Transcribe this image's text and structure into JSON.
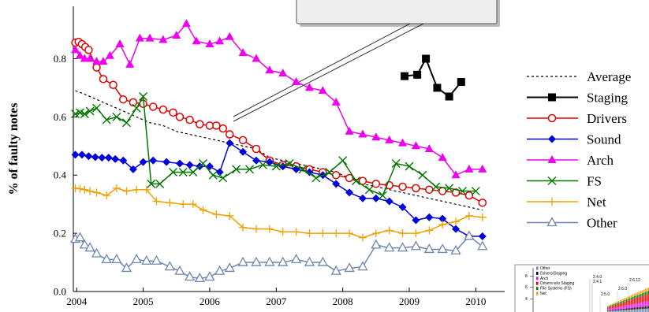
{
  "chart_data": {
    "type": "line",
    "ylabel": "% of faulty notes",
    "xlabel": "",
    "x_ticks": [
      "2004",
      "2005",
      "2006",
      "2007",
      "2008",
      "2009",
      "2010"
    ],
    "y_ticks": [
      "0.0",
      "0.2",
      "0.4",
      "0.6",
      "0.8"
    ],
    "xlim": [
      2003.95,
      2010.15
    ],
    "ylim": [
      0,
      0.98
    ],
    "legend_position": "right",
    "series": [
      {
        "name": "Average",
        "color": "#000000",
        "marker": "none",
        "dash": true,
        "x": [
          2003.98,
          2004.1,
          2004.3,
          2004.5,
          2004.7,
          2004.9,
          2005.1,
          2005.3,
          2005.5,
          2005.7,
          2005.9,
          2006.1,
          2006.3,
          2006.5,
          2006.7,
          2006.9,
          2007.1,
          2007.3,
          2007.5,
          2007.7,
          2007.9,
          2008.1,
          2008.3,
          2008.5,
          2008.7,
          2008.9,
          2009.1,
          2009.3,
          2009.5,
          2009.7,
          2009.9,
          2010.1
        ],
        "y": [
          0.69,
          0.68,
          0.66,
          0.64,
          0.62,
          0.6,
          0.58,
          0.57,
          0.55,
          0.54,
          0.53,
          0.52,
          0.51,
          0.5,
          0.49,
          0.46,
          0.45,
          0.44,
          0.43,
          0.42,
          0.41,
          0.39,
          0.37,
          0.36,
          0.35,
          0.34,
          0.33,
          0.32,
          0.31,
          0.3,
          0.29,
          0.28
        ]
      },
      {
        "name": "Staging",
        "color": "#000000",
        "marker": "square",
        "x": [
          2008.93,
          2009.12,
          2009.25,
          2009.42,
          2009.6,
          2009.78
        ],
        "y": [
          0.74,
          0.745,
          0.8,
          0.7,
          0.67,
          0.72
        ]
      },
      {
        "name": "Drivers",
        "color": "#e00000",
        "marker": "circle",
        "x": [
          2003.98,
          2004.03,
          2004.08,
          2004.13,
          2004.18,
          2004.3,
          2004.4,
          2004.55,
          2004.7,
          2004.85,
          2005.0,
          2005.15,
          2005.3,
          2005.45,
          2005.55,
          2005.7,
          2005.85,
          2006.0,
          2006.1,
          2006.2,
          2006.3,
          2006.5,
          2006.7,
          2006.9,
          2007.1,
          2007.3,
          2007.5,
          2007.7,
          2007.9,
          2008.1,
          2008.3,
          2008.5,
          2008.7,
          2008.9,
          2009.1,
          2009.3,
          2009.5,
          2009.7,
          2009.9,
          2010.1
        ],
        "y": [
          0.855,
          0.858,
          0.85,
          0.84,
          0.83,
          0.77,
          0.73,
          0.71,
          0.66,
          0.65,
          0.645,
          0.635,
          0.625,
          0.615,
          0.6,
          0.59,
          0.575,
          0.57,
          0.57,
          0.56,
          0.54,
          0.52,
          0.49,
          0.45,
          0.435,
          0.43,
          0.42,
          0.41,
          0.4,
          0.39,
          0.38,
          0.37,
          0.365,
          0.36,
          0.355,
          0.35,
          0.345,
          0.34,
          0.33,
          0.305
        ]
      },
      {
        "name": "Sound",
        "color": "#0000dd",
        "marker": "diamond",
        "x": [
          2003.98,
          2004.08,
          2004.18,
          2004.28,
          2004.38,
          2004.48,
          2004.58,
          2004.7,
          2004.85,
          2005.0,
          2005.15,
          2005.35,
          2005.55,
          2005.7,
          2005.85,
          2006.0,
          2006.15,
          2006.3,
          2006.5,
          2006.7,
          2006.9,
          2007.1,
          2007.3,
          2007.5,
          2007.7,
          2007.9,
          2008.1,
          2008.3,
          2008.5,
          2008.7,
          2008.9,
          2009.1,
          2009.3,
          2009.5,
          2009.7,
          2009.9,
          2010.1
        ],
        "y": [
          0.47,
          0.47,
          0.465,
          0.462,
          0.46,
          0.46,
          0.455,
          0.45,
          0.42,
          0.445,
          0.45,
          0.445,
          0.44,
          0.435,
          0.43,
          0.43,
          0.41,
          0.51,
          0.48,
          0.45,
          0.445,
          0.43,
          0.42,
          0.41,
          0.4,
          0.37,
          0.34,
          0.32,
          0.32,
          0.31,
          0.29,
          0.245,
          0.255,
          0.25,
          0.215,
          0.19,
          0.19
        ]
      },
      {
        "name": "Arch",
        "color": "#ee00ee",
        "marker": "triangle",
        "x": [
          2003.98,
          2004.05,
          2004.12,
          2004.2,
          2004.3,
          2004.4,
          2004.5,
          2004.65,
          2004.8,
          2004.95,
          2005.1,
          2005.3,
          2005.5,
          2005.65,
          2005.8,
          2006.0,
          2006.15,
          2006.3,
          2006.5,
          2006.7,
          2006.9,
          2007.1,
          2007.3,
          2007.5,
          2007.7,
          2007.9,
          2008.1,
          2008.3,
          2008.5,
          2008.7,
          2008.9,
          2009.1,
          2009.3,
          2009.5,
          2009.7,
          2009.9,
          2010.1
        ],
        "y": [
          0.83,
          0.81,
          0.8,
          0.8,
          0.79,
          0.79,
          0.81,
          0.85,
          0.78,
          0.87,
          0.87,
          0.865,
          0.88,
          0.92,
          0.86,
          0.85,
          0.86,
          0.875,
          0.82,
          0.8,
          0.76,
          0.75,
          0.72,
          0.7,
          0.69,
          0.65,
          0.55,
          0.54,
          0.53,
          0.52,
          0.51,
          0.5,
          0.49,
          0.46,
          0.4,
          0.42,
          0.42
        ]
      },
      {
        "name": "FS",
        "color": "#007700",
        "marker": "x",
        "x": [
          2003.98,
          2004.05,
          2004.12,
          2004.2,
          2004.3,
          2004.45,
          2004.6,
          2004.75,
          2004.9,
          2005.0,
          2005.12,
          2005.25,
          2005.45,
          2005.6,
          2005.75,
          2005.9,
          2006.05,
          2006.2,
          2006.4,
          2006.6,
          2006.8,
          2007.0,
          2007.2,
          2007.4,
          2007.6,
          2007.8,
          2008.0,
          2008.2,
          2008.4,
          2008.6,
          2008.8,
          2009.0,
          2009.2,
          2009.4,
          2009.6,
          2009.8,
          2010.0
        ],
        "y": [
          0.61,
          0.615,
          0.61,
          0.62,
          0.63,
          0.59,
          0.6,
          0.58,
          0.63,
          0.67,
          0.37,
          0.37,
          0.41,
          0.41,
          0.41,
          0.44,
          0.4,
          0.39,
          0.42,
          0.42,
          0.435,
          0.43,
          0.44,
          0.42,
          0.39,
          0.41,
          0.45,
          0.38,
          0.35,
          0.33,
          0.44,
          0.43,
          0.4,
          0.36,
          0.355,
          0.345,
          0.345
        ]
      },
      {
        "name": "Net",
        "color": "#f0a000",
        "marker": "plus",
        "x": [
          2003.98,
          2004.05,
          2004.12,
          2004.2,
          2004.3,
          2004.45,
          2004.6,
          2004.75,
          2004.9,
          2005.05,
          2005.2,
          2005.4,
          2005.6,
          2005.75,
          2005.9,
          2006.1,
          2006.3,
          2006.5,
          2006.7,
          2006.9,
          2007.1,
          2007.3,
          2007.5,
          2007.7,
          2007.9,
          2008.1,
          2008.3,
          2008.5,
          2008.7,
          2008.9,
          2009.1,
          2009.3,
          2009.5,
          2009.7,
          2009.9,
          2010.1
        ],
        "y": [
          0.355,
          0.353,
          0.35,
          0.345,
          0.34,
          0.33,
          0.355,
          0.345,
          0.35,
          0.35,
          0.31,
          0.305,
          0.3,
          0.3,
          0.28,
          0.265,
          0.26,
          0.22,
          0.215,
          0.215,
          0.205,
          0.205,
          0.2,
          0.2,
          0.2,
          0.2,
          0.185,
          0.2,
          0.21,
          0.2,
          0.2,
          0.21,
          0.23,
          0.24,
          0.26,
          0.255
        ]
      },
      {
        "name": "Other",
        "color": "#6e86b0",
        "marker": "triangle-open",
        "x": [
          2003.98,
          2004.05,
          2004.12,
          2004.2,
          2004.3,
          2004.45,
          2004.6,
          2004.75,
          2004.9,
          2005.05,
          2005.2,
          2005.4,
          2005.55,
          2005.7,
          2005.85,
          2006.0,
          2006.15,
          2006.3,
          2006.5,
          2006.7,
          2006.9,
          2007.1,
          2007.3,
          2007.5,
          2007.7,
          2007.9,
          2008.1,
          2008.3,
          2008.5,
          2008.7,
          2008.9,
          2009.1,
          2009.3,
          2009.5,
          2009.7,
          2009.9,
          2010.1
        ],
        "y": [
          0.18,
          0.185,
          0.16,
          0.15,
          0.13,
          0.11,
          0.11,
          0.08,
          0.11,
          0.105,
          0.105,
          0.085,
          0.07,
          0.05,
          0.045,
          0.05,
          0.07,
          0.08,
          0.1,
          0.1,
          0.1,
          0.1,
          0.11,
          0.1,
          0.1,
          0.07,
          0.08,
          0.085,
          0.16,
          0.15,
          0.15,
          0.155,
          0.145,
          0.145,
          0.14,
          0.19,
          0.155
        ]
      }
    ],
    "inset_legend": [
      "Other",
      "Drivers/Staging",
      "Arch",
      "Drivers w/o Staging",
      "File Systems (FS)",
      "Net"
    ],
    "inset_versions": [
      "2.4.0",
      "2.4.1",
      "2.5.0",
      "2.6.0",
      "2.6.12"
    ],
    "inset_ticks": [
      "8",
      "6",
      "4"
    ]
  }
}
